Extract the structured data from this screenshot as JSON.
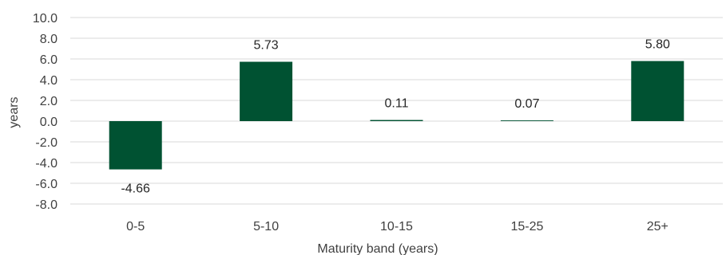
{
  "chart_data": {
    "type": "bar",
    "title": "",
    "xlabel": "Maturity band (years)",
    "ylabel": "years",
    "categories": [
      "0-5",
      "5-10",
      "10-15",
      "15-25",
      "25+"
    ],
    "values": [
      -4.66,
      5.73,
      0.11,
      0.07,
      5.8
    ],
    "value_labels": [
      "-4.66",
      "5.73",
      "0.11",
      "0.07",
      "5.80"
    ],
    "ylim": [
      -8.0,
      10.0
    ],
    "yticks": [
      10.0,
      8.0,
      6.0,
      4.0,
      2.0,
      0.0,
      -2.0,
      -4.0,
      -6.0,
      -8.0
    ],
    "ytick_labels": [
      "10.0",
      "8.0",
      "6.0",
      "4.0",
      "2.0",
      "0.0",
      "-2.0",
      "-4.0",
      "-6.0",
      "-8.0"
    ],
    "grid": true,
    "legend": "none",
    "colors": {
      "bar": "#005232",
      "grid": "#d9d9d9",
      "text": "#404040"
    }
  }
}
